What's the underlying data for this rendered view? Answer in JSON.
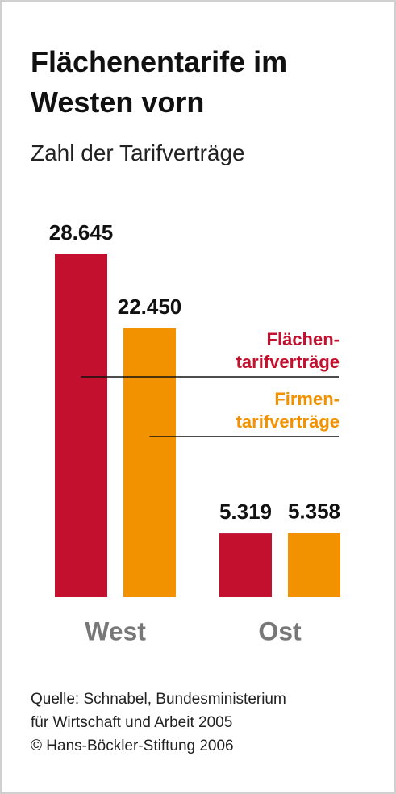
{
  "chart_data": {
    "type": "bar",
    "title": "Flächenentarife im\nWesten vorn",
    "subtitle": "Zahl der Tarifverträge",
    "categories": [
      "West",
      "Ost"
    ],
    "series": [
      {
        "name": "Flächen-\ntarifverträge",
        "color": "#c4102f",
        "values": [
          28645,
          5319
        ],
        "value_labels": [
          "28.645",
          "5.319"
        ]
      },
      {
        "name": "Firmen-\ntarifverträge",
        "color": "#f39200",
        "values": [
          22450,
          5358
        ],
        "value_labels": [
          "22.450",
          "5.358"
        ]
      }
    ],
    "source": "Quelle: Schnabel, Bundesministerium\nfür Wirtschaft und Arbeit 2005\n© Hans-Böckler-Stiftung 2006"
  }
}
